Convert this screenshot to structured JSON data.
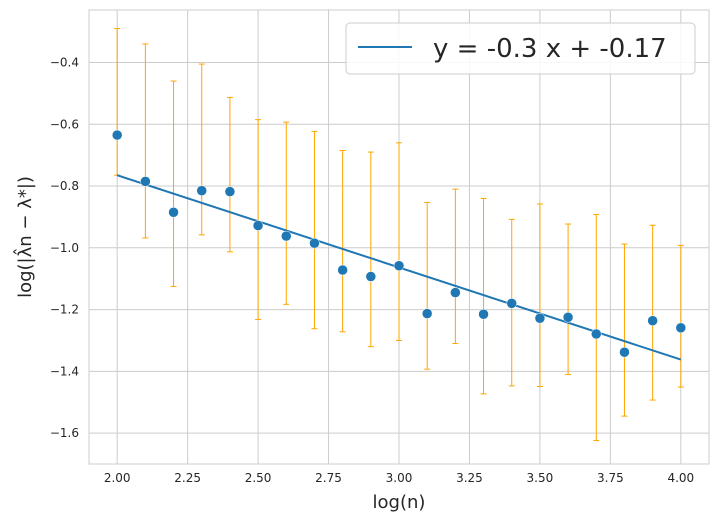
{
  "chart_data": {
    "type": "scatter",
    "xlabel": "log(n)",
    "ylabel": "log(|λ̂n − λ*|)",
    "xlim": [
      1.9,
      4.1
    ],
    "ylim": [
      -1.7,
      -0.23
    ],
    "grid": true,
    "legend_position": "top-right",
    "x_ticks": [
      2.0,
      2.25,
      2.5,
      2.75,
      3.0,
      3.25,
      3.5,
      3.75,
      4.0
    ],
    "x_tick_labels": [
      "2.00",
      "2.25",
      "2.50",
      "2.75",
      "3.00",
      "3.25",
      "3.50",
      "3.75",
      "4.00"
    ],
    "y_ticks": [
      -0.4,
      -0.6,
      -0.8,
      -1.0,
      -1.2,
      -1.4,
      -1.6
    ],
    "y_tick_labels": [
      "−0.4",
      "−0.6",
      "−0.8",
      "−1.0",
      "−1.2",
      "−1.4",
      "−1.6"
    ],
    "points": {
      "x": [
        2.0,
        2.1,
        2.2,
        2.3,
        2.4,
        2.5,
        2.6,
        2.7,
        2.8,
        2.9,
        3.0,
        3.1,
        3.2,
        3.3,
        3.4,
        3.5,
        3.6,
        3.7,
        3.8,
        3.9,
        4.0
      ],
      "y": [
        -0.635,
        -0.785,
        -0.885,
        -0.815,
        -0.818,
        -0.928,
        -0.962,
        -0.985,
        -1.072,
        -1.093,
        -1.058,
        -1.213,
        -1.145,
        -1.215,
        -1.18,
        -1.228,
        -1.225,
        -1.279,
        -1.338,
        -1.236,
        -1.259
      ],
      "err_low": [
        -0.765,
        -0.968,
        -1.125,
        -0.958,
        -1.013,
        -1.232,
        -1.183,
        -1.262,
        -1.272,
        -1.32,
        -1.3,
        -1.393,
        -1.31,
        -1.473,
        -1.447,
        -1.449,
        -1.41,
        -1.624,
        -1.545,
        -1.493,
        -1.451
      ],
      "err_high": [
        -0.29,
        -0.34,
        -0.46,
        -0.405,
        -0.513,
        -0.585,
        -0.593,
        -0.623,
        -0.685,
        -0.69,
        -0.66,
        -0.853,
        -0.81,
        -0.84,
        -0.908,
        -0.858,
        -0.923,
        -0.892,
        -0.988,
        -0.927,
        -0.992
      ]
    },
    "fit_line": {
      "name": "y = -0.3 x + -0.17",
      "x": [
        2.0,
        4.0
      ],
      "y": [
        -0.765,
        -1.362
      ]
    },
    "colors": {
      "points": "#1f77b4",
      "line": "#1f77b4",
      "errorbars": "#ffa500",
      "grid": "#cccccc",
      "spines": "#cccccc",
      "background": "#ffffff"
    }
  }
}
